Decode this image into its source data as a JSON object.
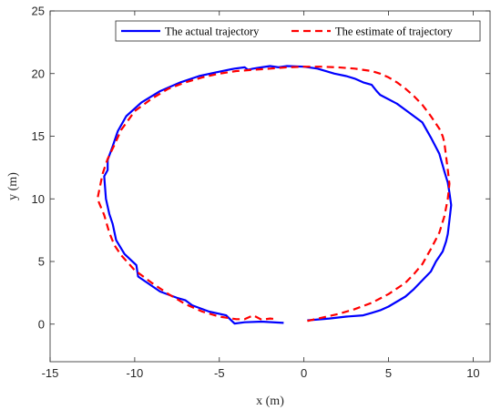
{
  "chart_data": {
    "type": "line",
    "xlabel": "x (m)",
    "ylabel": "y (m)",
    "xlim": [
      -15,
      11
    ],
    "ylim": [
      -3,
      25
    ],
    "xticks": [
      -15,
      -10,
      -5,
      0,
      5,
      10
    ],
    "yticks": [
      0,
      5,
      10,
      15,
      20,
      25
    ],
    "grid": false,
    "legend_position": "top-right",
    "series": [
      {
        "name": "The actual trajectory",
        "color": "#0000ff",
        "style": "solid",
        "x": [
          -1.2,
          -2.5,
          -3.5,
          -4.1,
          -4.6,
          -5.6,
          -6.6,
          -7.0,
          -7.5,
          -8.5,
          -9.8,
          -9.9,
          -10.6,
          -11.1,
          -11.3,
          -11.5,
          -11.7,
          -11.8,
          -11.6,
          -11.6,
          -11.3,
          -11.0,
          -10.5,
          -9.6,
          -8.5,
          -7.3,
          -6.2,
          -5.2,
          -4.1,
          -3.5,
          -3.3,
          -3.0,
          -2.5,
          -2.0,
          -1.5,
          -1.0,
          0.0,
          0.8,
          1.8,
          2.5,
          3.0,
          3.5,
          4.0,
          4.3,
          4.5,
          5.5,
          6.0,
          6.5,
          7.0,
          7.5,
          8.0,
          8.3,
          8.5,
          8.6,
          8.7,
          8.6,
          8.5,
          8.4,
          8.2,
          7.8,
          7.5,
          7.0,
          6.5,
          6.0,
          5.5,
          5.0,
          4.5,
          4.0,
          3.5,
          2.5,
          1.5,
          0.2
        ],
        "y": [
          0.1,
          0.2,
          0.15,
          0.05,
          0.7,
          1.0,
          1.5,
          1.9,
          2.1,
          2.6,
          3.8,
          4.7,
          5.6,
          6.7,
          8.0,
          8.8,
          10.0,
          11.8,
          12.3,
          13.1,
          14.2,
          15.4,
          16.6,
          17.7,
          18.6,
          19.3,
          19.8,
          20.1,
          20.4,
          20.5,
          20.3,
          20.4,
          20.5,
          20.6,
          20.5,
          20.6,
          20.55,
          20.4,
          20.0,
          19.8,
          19.6,
          19.3,
          19.1,
          18.6,
          18.3,
          17.6,
          17.1,
          16.6,
          16.1,
          14.9,
          13.6,
          12.2,
          11.3,
          10.5,
          9.5,
          8.3,
          7.2,
          6.6,
          5.8,
          5.0,
          4.2,
          3.5,
          2.8,
          2.2,
          1.8,
          1.4,
          1.1,
          0.9,
          0.7,
          0.6,
          0.45,
          0.3
        ]
      },
      {
        "name": "The estimate of trajectory",
        "color": "#ff0000",
        "style": "dashed",
        "x": [
          0.2,
          1.0,
          2.0,
          3.0,
          4.0,
          5.0,
          6.0,
          6.5,
          7.0,
          7.5,
          8.0,
          8.3,
          8.5,
          8.6,
          8.5,
          8.4,
          8.3,
          8.2,
          8.0,
          7.5,
          7.0,
          6.5,
          6.0,
          5.5,
          5.0,
          4.5,
          4.0,
          3.0,
          2.0,
          1.0,
          0.0,
          -1.0,
          -2.0,
          -3.0,
          -4.0,
          -5.0,
          -6.0,
          -7.0,
          -8.0,
          -9.0,
          -10.0,
          -10.8,
          -11.2,
          -11.6,
          -11.9,
          -12.2,
          -11.8,
          -11.5,
          -11.2,
          -10.8,
          -10.0,
          -9.0,
          -8.0,
          -7.0,
          -6.0,
          -5.0,
          -4.0,
          -3.5,
          -3.0,
          -2.5,
          -2.0,
          -1.6
        ],
        "y": [
          0.25,
          0.5,
          0.8,
          1.2,
          1.7,
          2.4,
          3.3,
          4.0,
          4.8,
          6.0,
          7.3,
          8.6,
          10.0,
          11.2,
          12.3,
          13.4,
          14.5,
          15.0,
          15.6,
          16.6,
          17.5,
          18.2,
          18.8,
          19.3,
          19.7,
          20.0,
          20.2,
          20.4,
          20.5,
          20.55,
          20.55,
          20.5,
          20.4,
          20.3,
          20.2,
          20.0,
          19.7,
          19.3,
          18.8,
          18.0,
          17.0,
          15.5,
          14.3,
          13.2,
          12.0,
          10.0,
          8.7,
          7.3,
          6.3,
          5.5,
          4.3,
          3.3,
          2.4,
          1.6,
          1.0,
          0.6,
          0.4,
          0.4,
          0.7,
          0.35,
          0.45,
          0.4
        ]
      }
    ]
  }
}
